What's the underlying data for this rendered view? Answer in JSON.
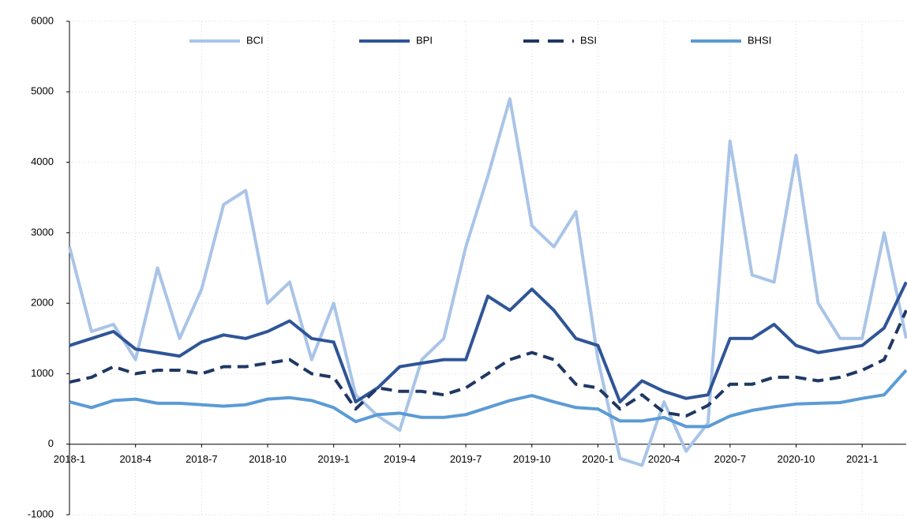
{
  "chart_data": {
    "type": "line",
    "categories": [
      "2018-1",
      null,
      null,
      "2018-4",
      null,
      null,
      "2018-7",
      null,
      null,
      "2018-10",
      null,
      null,
      "2019-1",
      null,
      null,
      "2019-4",
      null,
      null,
      "2019-7",
      null,
      null,
      "2019-10",
      null,
      null,
      "2020-1",
      null,
      null,
      "2020-4",
      null,
      null,
      "2020-7",
      null,
      null,
      "2020-10",
      null,
      null,
      "2021-1",
      null,
      null
    ],
    "series": [
      {
        "name": "BCI",
        "color": "#a9c4e8",
        "dash": false,
        "values": [
          2800,
          1600,
          1700,
          1200,
          2500,
          1500,
          2200,
          3400,
          3600,
          2000,
          2300,
          1200,
          2000,
          700,
          400,
          200,
          1200,
          1500,
          2800,
          3800,
          4900,
          3100,
          2800,
          3300,
          1200,
          -200,
          -300,
          600,
          -100,
          300,
          4300,
          2400,
          2300,
          4100,
          2000,
          1500,
          1500,
          3000,
          1500
        ]
      },
      {
        "name": "BPI",
        "color": "#2f5597",
        "dash": false,
        "values": [
          1400,
          1500,
          1600,
          1350,
          1300,
          1250,
          1450,
          1550,
          1500,
          1600,
          1750,
          1500,
          1450,
          600,
          800,
          1100,
          1150,
          1200,
          1200,
          2100,
          1900,
          2200,
          1900,
          1500,
          1400,
          600,
          900,
          750,
          650,
          700,
          1500,
          1500,
          1700,
          1400,
          1300,
          1350,
          1400,
          1650,
          2300
        ]
      },
      {
        "name": "BSI",
        "color": "#1f3864",
        "dash": true,
        "values": [
          880,
          950,
          1100,
          1000,
          1050,
          1050,
          1000,
          1100,
          1100,
          1150,
          1200,
          1000,
          950,
          500,
          800,
          750,
          750,
          700,
          800,
          1000,
          1200,
          1300,
          1200,
          850,
          800,
          500,
          700,
          450,
          400,
          550,
          850,
          850,
          950,
          950,
          900,
          950,
          1050,
          1200,
          1900
        ]
      },
      {
        "name": "BHSI",
        "color": "#5b9bd5",
        "dash": false,
        "values": [
          600,
          520,
          620,
          640,
          580,
          580,
          560,
          540,
          560,
          640,
          660,
          620,
          520,
          320,
          420,
          440,
          380,
          380,
          420,
          520,
          620,
          690,
          600,
          520,
          500,
          330,
          330,
          380,
          250,
          250,
          400,
          480,
          530,
          570,
          580,
          590,
          650,
          700,
          1050
        ]
      }
    ],
    "ylim": [
      -1000,
      6000
    ],
    "yticks": [
      -1000,
      0,
      1000,
      2000,
      3000,
      4000,
      5000,
      6000
    ],
    "grid": true,
    "legend": "top"
  }
}
